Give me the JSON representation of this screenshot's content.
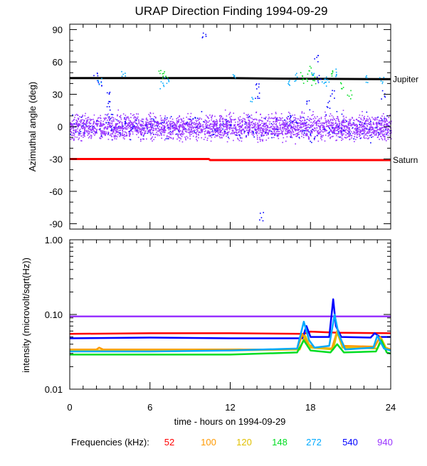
{
  "chart_data": [
    {
      "type": "scatter",
      "title": "URAP Direction Finding  1994-09-29",
      "xlabel": "time - hours on 1994-09-29",
      "ylabel": "Azimuthal angle (deg)",
      "xlim": [
        0,
        24
      ],
      "ylim": [
        -95,
        95
      ],
      "x_ticks": [
        "0",
        "6",
        "12",
        "18",
        "24"
      ],
      "y_ticks": [
        {
          "value": 90,
          "label": "90"
        },
        {
          "value": 60,
          "label": "60"
        },
        {
          "value": 30,
          "label": "30"
        },
        {
          "value": 0,
          "label": "0"
        },
        {
          "value": -30,
          "label": "-30"
        },
        {
          "value": -60,
          "label": "-60"
        },
        {
          "value": -90,
          "label": "-90"
        }
      ],
      "reference_lines": [
        {
          "name": "Jupiter",
          "color": "#000000",
          "points": [
            [
              0,
              45
            ],
            [
              12,
              45
            ],
            [
              16,
              44.5
            ],
            [
              24,
              44
            ]
          ]
        },
        {
          "name": "Saturn",
          "color": "#ff0000",
          "points": [
            [
              0,
              -30
            ],
            [
              10.4,
              -30
            ],
            [
              10.5,
              -31
            ],
            [
              24,
              -31
            ]
          ]
        }
      ],
      "series": [
        {
          "name": "940 kHz band",
          "color": "#9933ff",
          "description": "dense cluster between -12 and 12 deg across 0-24 h"
        },
        {
          "name": "540 kHz band",
          "color": "#0000ff",
          "points": [
            [
              1.9,
              47
            ],
            [
              2.2,
              42
            ],
            [
              2.8,
              28
            ],
            [
              2.9,
              20
            ],
            [
              3.0,
              12
            ],
            [
              10.0,
              86
            ],
            [
              14.0,
              40
            ],
            [
              14.0,
              31
            ],
            [
              14.3,
              -83
            ],
            [
              16.4,
              8
            ],
            [
              17.8,
              20
            ],
            [
              18.1,
              -10
            ],
            [
              18.4,
              62
            ],
            [
              18.6,
              45
            ],
            [
              19.3,
              22
            ],
            [
              19.6,
              30
            ],
            [
              23.4,
              30
            ]
          ]
        },
        {
          "name": "272 kHz band",
          "color": "#00aaff",
          "points": [
            [
              2.2,
              43
            ],
            [
              4.0,
              48
            ],
            [
              6.9,
              40
            ],
            [
              7.2,
              45
            ],
            [
              12.2,
              48
            ],
            [
              13.5,
              28
            ],
            [
              16.3,
              40
            ],
            [
              16.8,
              47
            ],
            [
              18.2,
              50
            ],
            [
              19.0,
              42
            ],
            [
              19.2,
              46
            ],
            [
              20.0,
              50
            ],
            [
              22.2,
              45
            ],
            [
              23.3,
              42
            ]
          ]
        },
        {
          "name": "148 kHz band",
          "color": "#00dd22",
          "points": [
            [
              6.8,
              49
            ],
            [
              7.1,
              47
            ],
            [
              17.3,
              48
            ],
            [
              17.6,
              45
            ],
            [
              18.0,
              52
            ],
            [
              18.2,
              42
            ],
            [
              19.5,
              49
            ],
            [
              20.3,
              40
            ],
            [
              20.9,
              30
            ]
          ]
        }
      ]
    },
    {
      "type": "line",
      "xlabel": "time - hours on 1994-09-29",
      "ylabel": "intensity (microvolt/sqrt(Hz))",
      "xlim": [
        0,
        24
      ],
      "ylim": [
        0.01,
        1.0
      ],
      "yscale": "log",
      "x_ticks": [
        "0",
        "6",
        "12",
        "18",
        "24"
      ],
      "y_ticks": [
        {
          "value": 1.0,
          "label": "1.00"
        },
        {
          "value": 0.1,
          "label": "0.10"
        },
        {
          "value": 0.01,
          "label": "0.01"
        }
      ],
      "series": [
        {
          "name": "940",
          "color": "#9933ff",
          "points": [
            [
              0,
              0.094
            ],
            [
              6,
              0.094
            ],
            [
              12,
              0.094
            ],
            [
              18,
              0.094
            ],
            [
              24,
              0.094
            ]
          ]
        },
        {
          "name": "52",
          "color": "#ff0000",
          "points": [
            [
              0,
              0.055
            ],
            [
              6,
              0.056
            ],
            [
              12,
              0.056
            ],
            [
              17.5,
              0.055
            ],
            [
              18,
              0.059
            ],
            [
              20,
              0.057
            ],
            [
              24,
              0.056
            ]
          ]
        },
        {
          "name": "540",
          "color": "#0000ff",
          "points": [
            [
              0,
              0.048
            ],
            [
              6,
              0.049
            ],
            [
              12,
              0.048
            ],
            [
              17.4,
              0.048
            ],
            [
              17.7,
              0.07
            ],
            [
              18.0,
              0.05
            ],
            [
              19.4,
              0.05
            ],
            [
              19.7,
              0.16
            ],
            [
              19.9,
              0.07
            ],
            [
              20.3,
              0.05
            ],
            [
              22.5,
              0.049
            ],
            [
              22.8,
              0.056
            ],
            [
              23.2,
              0.05
            ],
            [
              24,
              0.05
            ]
          ]
        },
        {
          "name": "100",
          "color": "#ff9900",
          "points": [
            [
              0,
              0.034
            ],
            [
              2,
              0.034
            ],
            [
              2.2,
              0.036
            ],
            [
              2.5,
              0.034
            ],
            [
              6,
              0.034
            ],
            [
              12,
              0.034
            ],
            [
              17.0,
              0.034
            ],
            [
              17.4,
              0.055
            ],
            [
              17.8,
              0.04
            ],
            [
              18.3,
              0.036
            ],
            [
              19.6,
              0.035
            ],
            [
              20.0,
              0.06
            ],
            [
              20.5,
              0.038
            ],
            [
              22.8,
              0.037
            ],
            [
              23.2,
              0.05
            ],
            [
              23.6,
              0.036
            ],
            [
              24,
              0.034
            ]
          ]
        },
        {
          "name": "120",
          "color": "#e0c000",
          "points": [
            [
              0,
              0.033
            ],
            [
              6,
              0.033
            ],
            [
              12,
              0.033
            ],
            [
              17.2,
              0.034
            ],
            [
              17.6,
              0.052
            ],
            [
              18.0,
              0.036
            ],
            [
              19.7,
              0.034
            ],
            [
              20.0,
              0.058
            ],
            [
              20.4,
              0.036
            ],
            [
              23.0,
              0.035
            ],
            [
              23.3,
              0.048
            ],
            [
              23.7,
              0.034
            ],
            [
              24,
              0.033
            ]
          ]
        },
        {
          "name": "148",
          "color": "#00dd22",
          "points": [
            [
              0,
              0.029
            ],
            [
              6,
              0.029
            ],
            [
              12,
              0.029
            ],
            [
              17.0,
              0.031
            ],
            [
              17.5,
              0.045
            ],
            [
              18.0,
              0.033
            ],
            [
              19.5,
              0.031
            ],
            [
              20.0,
              0.04
            ],
            [
              20.5,
              0.031
            ],
            [
              22.9,
              0.032
            ],
            [
              23.3,
              0.045
            ],
            [
              23.7,
              0.031
            ],
            [
              24,
              0.03
            ]
          ]
        },
        {
          "name": "272",
          "color": "#00aaff",
          "points": [
            [
              0,
              0.032
            ],
            [
              6,
              0.032
            ],
            [
              12,
              0.033
            ],
            [
              17.0,
              0.035
            ],
            [
              17.5,
              0.08
            ],
            [
              17.9,
              0.045
            ],
            [
              18.3,
              0.036
            ],
            [
              19.4,
              0.038
            ],
            [
              19.8,
              0.1
            ],
            [
              20.1,
              0.055
            ],
            [
              20.6,
              0.034
            ],
            [
              22.7,
              0.036
            ],
            [
              23.0,
              0.052
            ],
            [
              23.5,
              0.035
            ],
            [
              24,
              0.033
            ]
          ]
        }
      ]
    }
  ],
  "legend": {
    "label": "Frequencies (kHz):",
    "items": [
      {
        "name": "52",
        "color": "#ff0000"
      },
      {
        "name": "100",
        "color": "#ff9900"
      },
      {
        "name": "120",
        "color": "#e0c000"
      },
      {
        "name": "148",
        "color": "#00dd22"
      },
      {
        "name": "272",
        "color": "#00aaff"
      },
      {
        "name": "540",
        "color": "#0000ff"
      },
      {
        "name": "940",
        "color": "#9933ff"
      }
    ]
  }
}
